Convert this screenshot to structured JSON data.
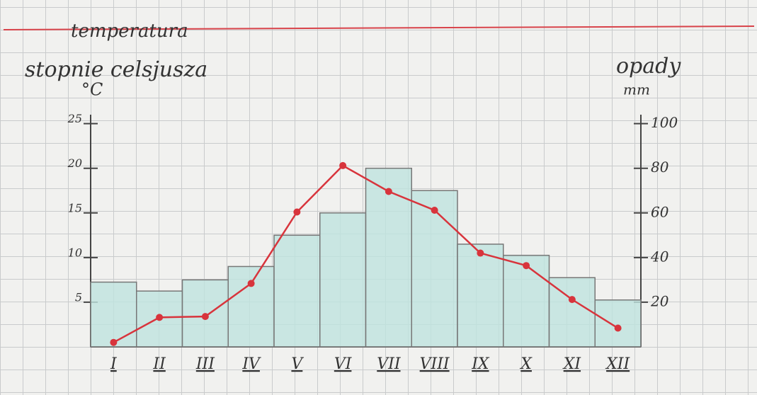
{
  "chart_data": {
    "type": "combo",
    "y_title": "temperatura",
    "y_label": "stopnie celsjusza",
    "y_unit": "°C",
    "y2_label": "opady",
    "y2_unit": "mm",
    "categories": [
      "I",
      "II",
      "III",
      "IV",
      "V",
      "VI",
      "VII",
      "VIII",
      "IX",
      "X",
      "XI",
      "XII"
    ],
    "series": [
      {
        "type": "bar",
        "axis": "y2",
        "color": "#bfe3de",
        "values": [
          29,
          25,
          30,
          36,
          50,
          60,
          80,
          70,
          46,
          41,
          31,
          21
        ]
      },
      {
        "type": "line",
        "axis": "y",
        "color": "#d8343c",
        "values": [
          0.5,
          3.3,
          3.4,
          7.1,
          15.1,
          20.3,
          17.4,
          15.3,
          10.5,
          9.1,
          5.3,
          2.1
        ]
      }
    ],
    "ylim": [
      0,
      26
    ],
    "yticks": [
      5,
      10,
      15,
      20,
      25
    ],
    "y2lim": [
      0,
      104
    ],
    "y2ticks": [
      20,
      40,
      60,
      80,
      100
    ]
  }
}
